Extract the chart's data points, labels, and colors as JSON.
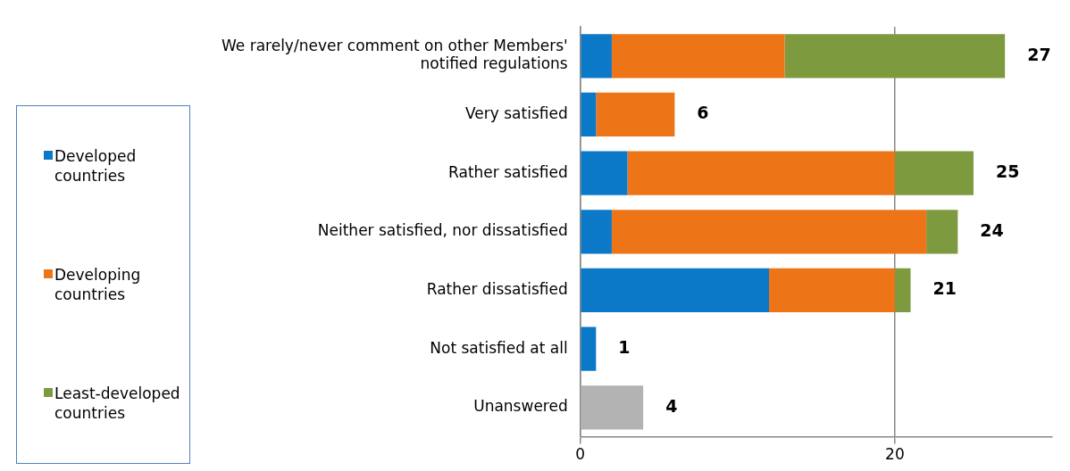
{
  "chart_data": {
    "type": "bar",
    "orientation": "horizontal",
    "stacked": true,
    "categories": [
      "We rarely/never comment on other Members' notified regulations",
      "Very satisfied",
      "Rather satisfied",
      "Neither satisfied, nor dissatisfied",
      "Rather dissatisfied",
      "Not satisfied at all",
      "Unanswered"
    ],
    "series": [
      {
        "name": "Developed countries",
        "color": "#0c78c8",
        "values": [
          2,
          1,
          3,
          2,
          12,
          1,
          null
        ]
      },
      {
        "name": "Developing countries",
        "color": "#ee7418",
        "values": [
          11,
          5,
          17,
          20,
          8,
          null,
          null
        ]
      },
      {
        "name": "Least-developed countries",
        "color": "#7d9a3f",
        "values": [
          14,
          null,
          5,
          2,
          1,
          null,
          null
        ]
      },
      {
        "color": "#b3b3b3",
        "values": [
          null,
          null,
          null,
          null,
          null,
          null,
          4
        ]
      }
    ],
    "totals": [
      "27",
      "6",
      "25",
      "24",
      "21",
      "1",
      "4"
    ],
    "xlim": [
      0,
      30
    ],
    "xticks": [
      0,
      20
    ],
    "grid": "x",
    "legend": "left"
  }
}
